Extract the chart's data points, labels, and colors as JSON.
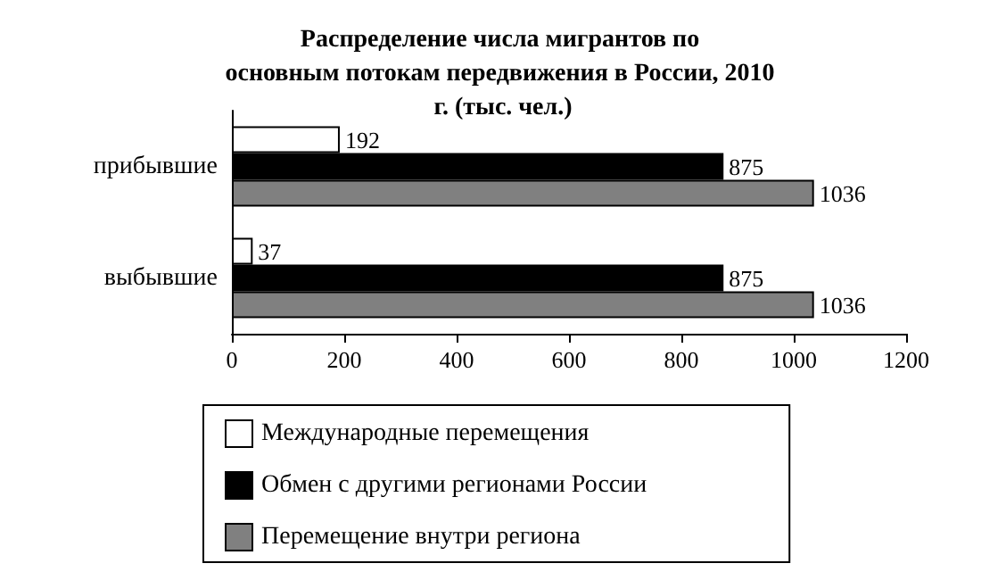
{
  "chart_data": {
    "type": "bar",
    "orientation": "horizontal",
    "title": "Распределение числа мигрантов по основным потокам передвижения в России, 2010 г. (тыс. чел.)",
    "categories": [
      "прибывшие",
      "выбывшие"
    ],
    "series": [
      {
        "name": "Международные перемещения",
        "color": "#ffffff",
        "values": [
          192,
          37
        ]
      },
      {
        "name": "Обмен с другими регионами России",
        "color": "#000000",
        "values": [
          875,
          875
        ]
      },
      {
        "name": "Перемещение внутри региона",
        "color": "#808080",
        "values": [
          1036,
          1036
        ]
      }
    ],
    "xlim": [
      0,
      1200
    ],
    "xticks": [
      0,
      200,
      400,
      600,
      800,
      1000,
      1200
    ],
    "data_labels": true,
    "grid": false,
    "legend": "bottom"
  }
}
